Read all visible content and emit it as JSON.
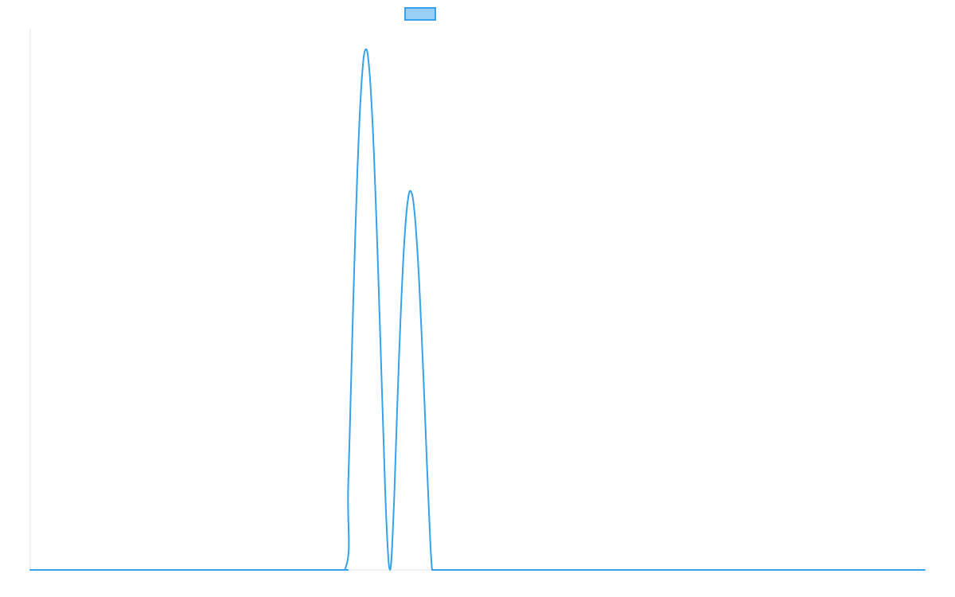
{
  "chart_data": {
    "type": "line",
    "title": "",
    "xlabel": "",
    "ylabel": "",
    "x_range": [
      0,
      256
    ],
    "ylim": [
      0,
      160
    ],
    "grid": false,
    "legend": {
      "placement": "top-center",
      "entries": [
        {
          "name": "",
          "fill_color": "#9ad0f5",
          "border_color": "#36a2eb"
        }
      ]
    },
    "series": [
      {
        "name": "",
        "color": "#36a2eb",
        "x": [
          0,
          80,
          90,
          91,
          92,
          93,
          94,
          95,
          96,
          97,
          98,
          99,
          100,
          101,
          102,
          103,
          104,
          105,
          106,
          107,
          108,
          109,
          110,
          111,
          112,
          113,
          114,
          115,
          116,
          117,
          118,
          119,
          120,
          130,
          256
        ],
        "values": [
          0,
          0,
          0,
          25.1,
          62.6,
          98.6,
          127.6,
          146.7,
          153.9,
          148.3,
          131.3,
          105.5,
          74.4,
          42.1,
          12.7,
          0,
          17.3,
          47.3,
          74.8,
          96.1,
          108.8,
          111.8,
          105.4,
          90.8,
          69.8,
          45.1,
          19.8,
          0,
          0,
          0,
          0,
          0,
          0,
          0,
          0
        ]
      }
    ]
  }
}
